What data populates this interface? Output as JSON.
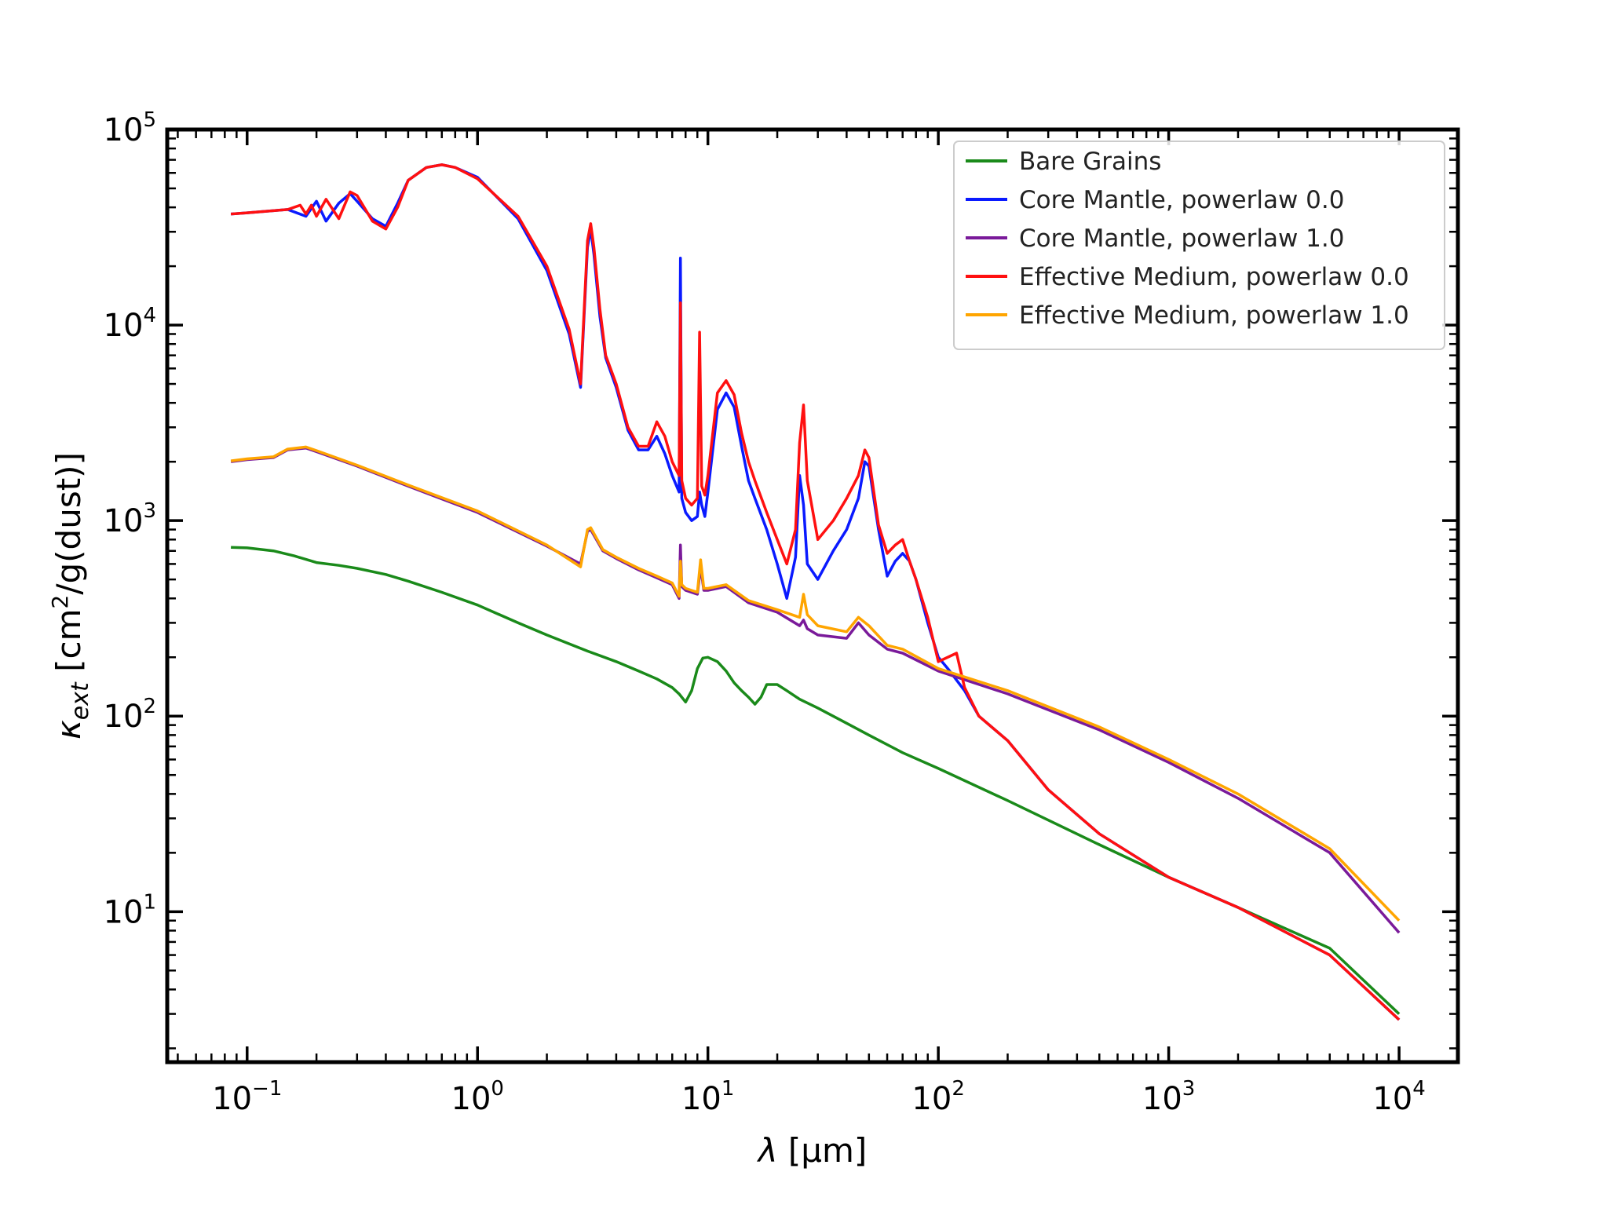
{
  "chart_data": {
    "type": "line",
    "xscale": "log",
    "yscale": "log",
    "xlim": [
      0.045,
      18000
    ],
    "ylim": [
      1.7,
      100000
    ],
    "xlabel": {
      "symbol": "λ",
      "unit": " [μm]"
    },
    "ylabel": {
      "symbol": "κ",
      "subscript": "ext",
      "unit_pre": " [cm",
      "unit_sup": "2",
      "unit_post": "/g(dust)]"
    },
    "x_ticks": [
      {
        "base": "10",
        "exp": "−1",
        "value": 0.1
      },
      {
        "base": "10",
        "exp": "0",
        "value": 1
      },
      {
        "base": "10",
        "exp": "1",
        "value": 10
      },
      {
        "base": "10",
        "exp": "2",
        "value": 100
      },
      {
        "base": "10",
        "exp": "3",
        "value": 1000
      },
      {
        "base": "10",
        "exp": "4",
        "value": 10000
      }
    ],
    "y_ticks": [
      {
        "base": "10",
        "exp": "1",
        "value": 10
      },
      {
        "base": "10",
        "exp": "2",
        "value": 100
      },
      {
        "base": "10",
        "exp": "3",
        "value": 1000
      },
      {
        "base": "10",
        "exp": "4",
        "value": 10000
      },
      {
        "base": "10",
        "exp": "5",
        "value": 100000
      }
    ],
    "grid": false,
    "legend_position": "top-right",
    "series": [
      {
        "name": "Bare Grains",
        "color": "#1a8a1a",
        "x": [
          0.085,
          0.1,
          0.13,
          0.16,
          0.2,
          0.25,
          0.3,
          0.4,
          0.5,
          0.7,
          1,
          1.5,
          2,
          3,
          4,
          5,
          6,
          7,
          7.5,
          8,
          8.5,
          9,
          9.5,
          10,
          11,
          12,
          13,
          14,
          15,
          16,
          17,
          18,
          20,
          22,
          25,
          30,
          40,
          50,
          70,
          100,
          200,
          500,
          1000,
          2000,
          5000,
          10000
        ],
        "y": [
          730,
          725,
          700,
          660,
          610,
          590,
          570,
          530,
          490,
          430,
          370,
          300,
          260,
          215,
          190,
          170,
          155,
          140,
          130,
          118,
          135,
          175,
          198,
          200,
          190,
          170,
          148,
          135,
          125,
          115,
          125,
          145,
          145,
          135,
          122,
          110,
          92,
          80,
          65,
          54,
          37,
          22,
          15,
          10.5,
          6.5,
          3.0
        ]
      },
      {
        "name": "Core Mantle, powerlaw 0.0",
        "color": "#0a1aff",
        "x": [
          0.085,
          0.1,
          0.15,
          0.18,
          0.2,
          0.22,
          0.25,
          0.28,
          0.3,
          0.35,
          0.4,
          0.45,
          0.5,
          0.6,
          0.7,
          0.8,
          1,
          1.5,
          2,
          2.5,
          2.8,
          3,
          3.1,
          3.2,
          3.4,
          3.6,
          4,
          4.5,
          5,
          5.5,
          6,
          6.5,
          7,
          7.5,
          7.6,
          7.7,
          8,
          8.5,
          9,
          9.2,
          9.4,
          9.7,
          10,
          11,
          12,
          13,
          14,
          15,
          16,
          18,
          20,
          22,
          24,
          25,
          26,
          27,
          30,
          35,
          40,
          45,
          48,
          50,
          55,
          60,
          65,
          70,
          75,
          80,
          90,
          100,
          110,
          130,
          150,
          200,
          300,
          500,
          1000,
          2000,
          5000,
          10000
        ],
        "y": [
          37000,
          37500,
          39000,
          36000,
          43000,
          34000,
          42000,
          47000,
          43000,
          35000,
          32000,
          42000,
          55000,
          64000,
          66000,
          64000,
          57000,
          35000,
          19000,
          9000,
          4800,
          25000,
          31000,
          23000,
          11000,
          6800,
          4800,
          2900,
          2300,
          2300,
          2700,
          2200,
          1700,
          1400,
          22000,
          1300,
          1100,
          1000,
          1050,
          1400,
          1200,
          1050,
          1400,
          3700,
          4500,
          3800,
          2400,
          1600,
          1300,
          900,
          600,
          400,
          650,
          1700,
          1200,
          600,
          500,
          700,
          900,
          1300,
          2000,
          1900,
          900,
          520,
          620,
          680,
          620,
          500,
          300,
          200,
          175,
          135,
          100,
          75,
          42,
          25,
          15,
          10.5,
          6,
          2.8
        ]
      },
      {
        "name": "Core Mantle, powerlaw 1.0",
        "color": "#7a1a9a",
        "x": [
          0.085,
          0.1,
          0.13,
          0.15,
          0.18,
          0.2,
          0.3,
          0.5,
          1,
          2,
          2.8,
          3,
          3.1,
          3.5,
          4,
          5,
          6,
          7,
          7.5,
          7.6,
          7.7,
          8,
          9,
          9.3,
          9.6,
          10,
          12,
          15,
          20,
          25,
          26,
          27,
          30,
          40,
          45,
          50,
          60,
          70,
          100,
          200,
          500,
          1000,
          2000,
          5000,
          10000
        ],
        "y": [
          2000,
          2050,
          2100,
          2300,
          2350,
          2250,
          1900,
          1500,
          1100,
          740,
          600,
          880,
          900,
          700,
          640,
          560,
          510,
          470,
          400,
          750,
          460,
          440,
          420,
          580,
          440,
          440,
          460,
          380,
          340,
          290,
          310,
          280,
          260,
          250,
          300,
          260,
          220,
          210,
          170,
          130,
          85,
          58,
          38,
          20,
          7.8
        ]
      },
      {
        "name": "Effective Medium, powerlaw 0.0",
        "color": "#ff1010",
        "x": [
          0.085,
          0.1,
          0.15,
          0.17,
          0.18,
          0.19,
          0.2,
          0.22,
          0.25,
          0.28,
          0.3,
          0.35,
          0.4,
          0.45,
          0.5,
          0.6,
          0.7,
          0.8,
          1,
          1.5,
          2,
          2.5,
          2.8,
          3,
          3.1,
          3.2,
          3.4,
          3.6,
          4,
          4.5,
          5,
          5.5,
          6,
          6.5,
          7,
          7.5,
          7.6,
          7.7,
          8,
          8.5,
          9,
          9.2,
          9.4,
          9.7,
          10,
          11,
          12,
          13,
          14,
          15,
          16,
          18,
          20,
          22,
          24,
          25,
          26,
          27,
          30,
          35,
          40,
          45,
          48,
          50,
          55,
          60,
          65,
          70,
          75,
          80,
          90,
          100,
          120,
          130,
          150,
          200,
          300,
          500,
          1000,
          2000,
          5000,
          10000
        ],
        "y": [
          37000,
          37500,
          39000,
          41000,
          37000,
          41000,
          36000,
          44000,
          35000,
          48000,
          46000,
          34000,
          31000,
          40000,
          55000,
          64000,
          66000,
          64000,
          56000,
          36000,
          20000,
          9500,
          5000,
          27000,
          33000,
          25000,
          12000,
          7000,
          5000,
          3000,
          2400,
          2400,
          3200,
          2700,
          2000,
          1700,
          13000,
          1600,
          1300,
          1200,
          1300,
          9200,
          1500,
          1350,
          1700,
          4500,
          5200,
          4400,
          2800,
          2000,
          1600,
          1100,
          800,
          600,
          900,
          2500,
          3900,
          1600,
          800,
          1000,
          1300,
          1700,
          2300,
          2100,
          950,
          680,
          750,
          800,
          620,
          500,
          320,
          190,
          210,
          140,
          100,
          75,
          42,
          25,
          15,
          10.5,
          6,
          2.8
        ]
      },
      {
        "name": "Effective Medium, powerlaw 1.0",
        "color": "#ffa500",
        "x": [
          0.085,
          0.1,
          0.13,
          0.15,
          0.18,
          0.2,
          0.3,
          0.5,
          1,
          2,
          2.8,
          3,
          3.1,
          3.5,
          4,
          5,
          6,
          7,
          7.5,
          7.6,
          7.7,
          8,
          9,
          9.3,
          9.6,
          10,
          12,
          15,
          20,
          25,
          26,
          27,
          30,
          40,
          45,
          50,
          60,
          70,
          100,
          200,
          500,
          1000,
          2000,
          5000,
          10000
        ],
        "y": [
          2020,
          2070,
          2120,
          2320,
          2380,
          2280,
          1920,
          1520,
          1120,
          750,
          580,
          900,
          920,
          710,
          650,
          570,
          520,
          480,
          410,
          620,
          470,
          450,
          430,
          630,
          450,
          450,
          470,
          390,
          350,
          320,
          420,
          330,
          290,
          270,
          320,
          290,
          230,
          220,
          175,
          135,
          88,
          60,
          40,
          21,
          9.0
        ]
      }
    ]
  }
}
